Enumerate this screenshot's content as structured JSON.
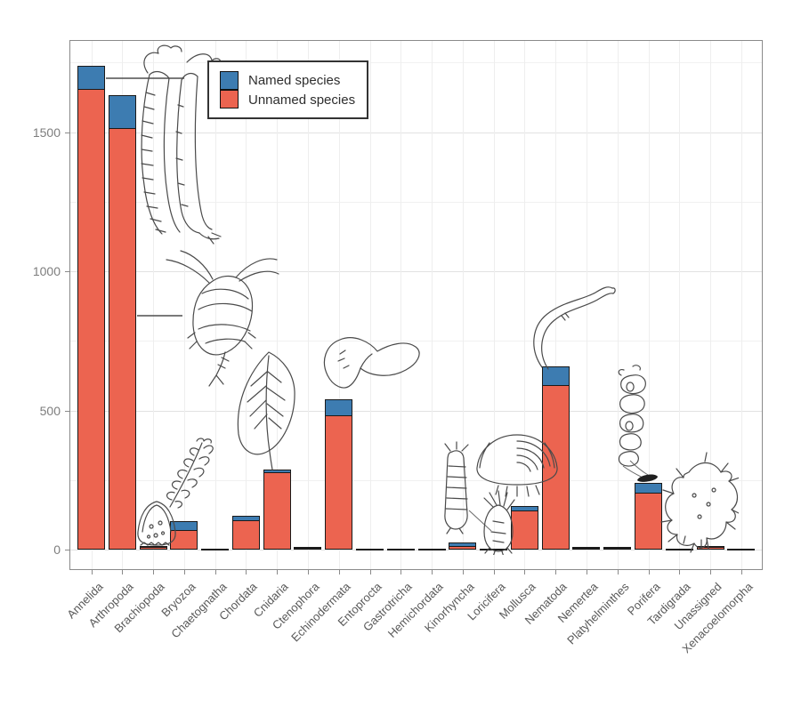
{
  "figure": {
    "background": "#ffffff",
    "title": ""
  },
  "legend": {
    "entries": [
      {
        "label": "Named species",
        "color": "#3d7cb1"
      },
      {
        "label": "Unnamed species",
        "color": "#ec6450"
      }
    ]
  },
  "colors": {
    "named_blue": "#3d7cb1",
    "unnamed_red": "#ec6450",
    "bar_outline": "#1a1a1a",
    "axis_text": "#7d7d7d",
    "category_text": "#595959",
    "sketch_stroke": "#4a4a4a"
  },
  "illustrations": [
    "annelid-worm",
    "copepod",
    "brachiopod-shell",
    "bryozoan-colony",
    "sea-pen-leaf",
    "sea-cucumber",
    "kinorhynch",
    "loriciferan",
    "bivalve-shell",
    "nematode-worm",
    "glass-sponge",
    "tardigrade"
  ],
  "chart_data": {
    "type": "bar",
    "stacked": true,
    "categories": [
      "Annelida",
      "Arthropoda",
      "Brachiopoda",
      "Bryozoa",
      "Chaetognatha",
      "Chordata",
      "Cnidaria",
      "Ctenophora",
      "Echinodermata",
      "Entoprocta",
      "Gastrotricha",
      "Hemichordata",
      "Kinorhyncha",
      "Loricifera",
      "Mollusca",
      "Nematoda",
      "Nemertea",
      "Platyhelminthes",
      "Porifera",
      "Tardigrada",
      "Unassigned",
      "Xenacoelomorpha"
    ],
    "series": [
      {
        "name": "Named species",
        "color": "#3d7cb1",
        "stack_position": "top",
        "values": [
          85,
          120,
          6,
          35,
          2,
          20,
          13,
          2,
          60,
          1,
          1,
          2,
          16,
          1,
          19,
          70,
          2,
          2,
          37,
          3,
          1,
          1
        ]
      },
      {
        "name": "Unnamed species",
        "color": "#ec6450",
        "stack_position": "bottom",
        "values": [
          1655,
          1515,
          10,
          70,
          4,
          105,
          278,
          8,
          483,
          4,
          2,
          3,
          14,
          2,
          141,
          591,
          9,
          8,
          205,
          3,
          13,
          2
        ]
      }
    ],
    "totals": [
      1740,
      1635,
      16,
      105,
      6,
      125,
      291,
      10,
      543,
      5,
      3,
      5,
      30,
      3,
      160,
      661,
      11,
      10,
      242,
      6,
      14,
      3
    ],
    "title": "",
    "xlabel": "",
    "ylabel": "",
    "ylim": [
      0,
      1830
    ],
    "yticks": [
      0,
      500,
      1000,
      1500
    ],
    "yticks_minor": [
      250,
      750,
      1250,
      1750
    ],
    "grid": "horizontal major+minor, faint vertical per category",
    "legend_position": "top-left-inside",
    "x_label_rotation_deg": 45
  }
}
